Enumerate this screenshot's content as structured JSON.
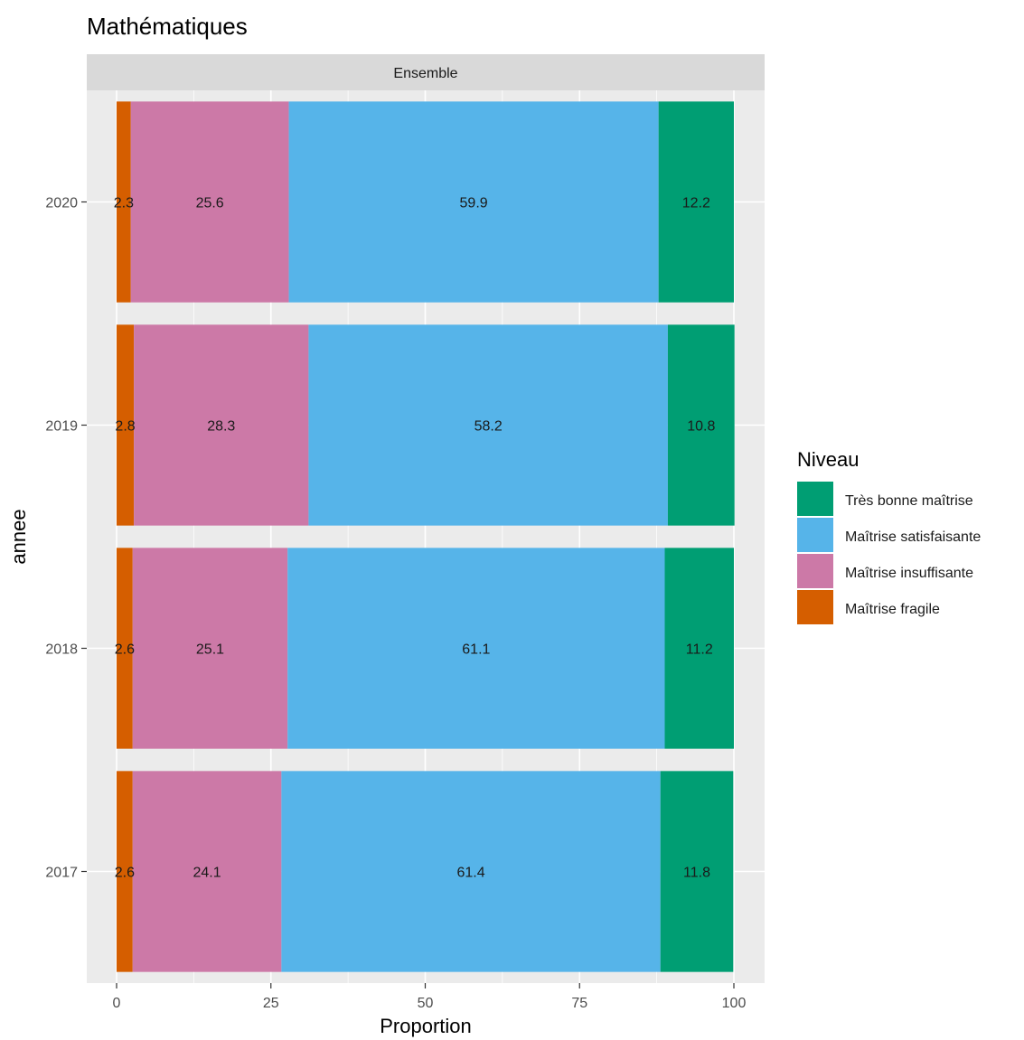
{
  "chart_data": {
    "type": "bar",
    "orientation": "horizontal",
    "stacked": true,
    "title": "Mathématiques",
    "facet_label": "Ensemble",
    "xlabel": "Proportion",
    "ylabel": "annee",
    "xlim": [
      0,
      100
    ],
    "x_ticks": [
      "0",
      "25",
      "50",
      "75",
      "100"
    ],
    "categories": [
      "2020",
      "2019",
      "2018",
      "2017"
    ],
    "series": [
      {
        "name": "Maîtrise fragile",
        "color": "#D55E00",
        "values": [
          2.3,
          2.8,
          2.6,
          2.6
        ],
        "labels": [
          "2.3",
          "2.8",
          "2.6",
          "2.6"
        ]
      },
      {
        "name": "Maîtrise insuffisante",
        "color": "#CC79A7",
        "values": [
          25.6,
          28.3,
          25.1,
          24.1
        ],
        "labels": [
          "25.6",
          "28.3",
          "25.1",
          "24.1"
        ]
      },
      {
        "name": "Maîtrise satisfaisante",
        "color": "#56B4E9",
        "values": [
          59.9,
          58.2,
          61.1,
          61.4
        ],
        "labels": [
          "59.9",
          "58.2",
          "61.1",
          "61.4"
        ]
      },
      {
        "name": "Très bonne maîtrise",
        "color": "#009E73",
        "values": [
          12.2,
          10.8,
          11.2,
          11.8
        ],
        "labels": [
          "12.2",
          "10.8",
          "11.2",
          "11.8"
        ]
      }
    ],
    "legend": {
      "title": "Niveau",
      "position": "right",
      "order": [
        "Très bonne maîtrise",
        "Maîtrise satisfaisante",
        "Maîtrise insuffisante",
        "Maîtrise fragile"
      ]
    },
    "grid": true,
    "panel_background": "#EBEBEB"
  }
}
